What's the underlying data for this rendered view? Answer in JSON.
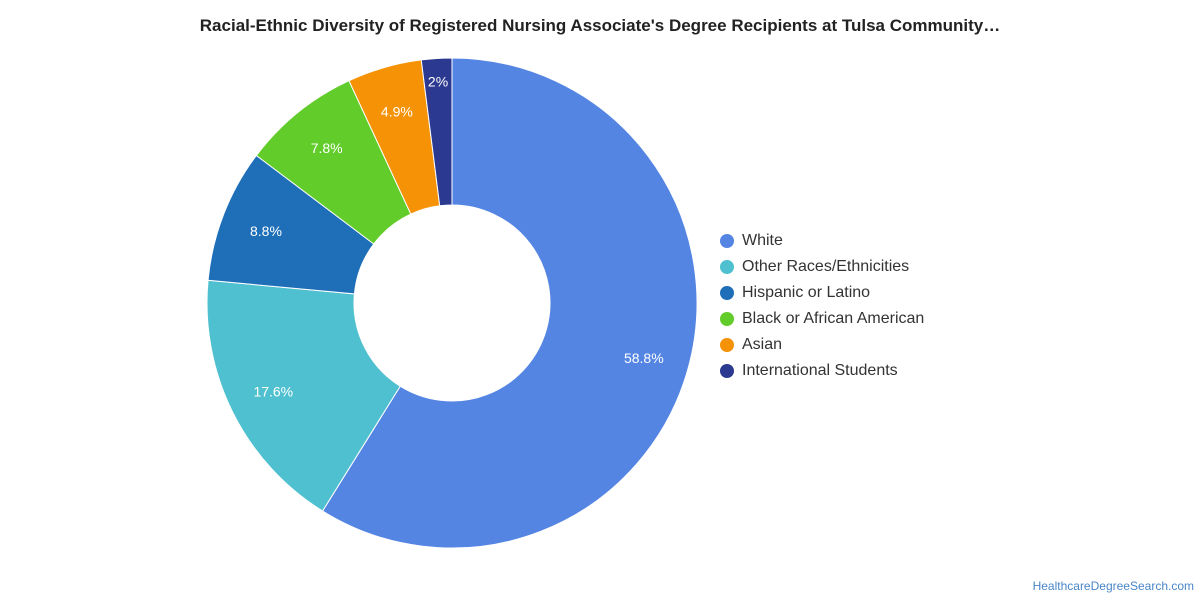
{
  "chart_data": {
    "type": "pie",
    "variant": "donut",
    "title": "Racial-Ethnic Diversity of Registered Nursing Associate's Degree Recipients at Tulsa Community…",
    "unit": "%",
    "legend_position": "right",
    "slices": [
      {
        "label": "White",
        "value": 58.8,
        "display": "58.8%",
        "color": "#5585e3"
      },
      {
        "label": "Other Races/Ethnicities",
        "value": 17.6,
        "display": "17.6%",
        "color": "#4fc0cf"
      },
      {
        "label": "Hispanic or Latino",
        "value": 8.8,
        "display": "8.8%",
        "color": "#1f6fb8"
      },
      {
        "label": "Black or African American",
        "value": 7.8,
        "display": "7.8%",
        "color": "#62cc2a"
      },
      {
        "label": "Asian",
        "value": 4.9,
        "display": "4.9%",
        "color": "#f59205"
      },
      {
        "label": "International Students",
        "value": 2.0,
        "display": "2%",
        "color": "#2b3990"
      }
    ]
  },
  "credit": "HealthcareDegreeSearch.com"
}
